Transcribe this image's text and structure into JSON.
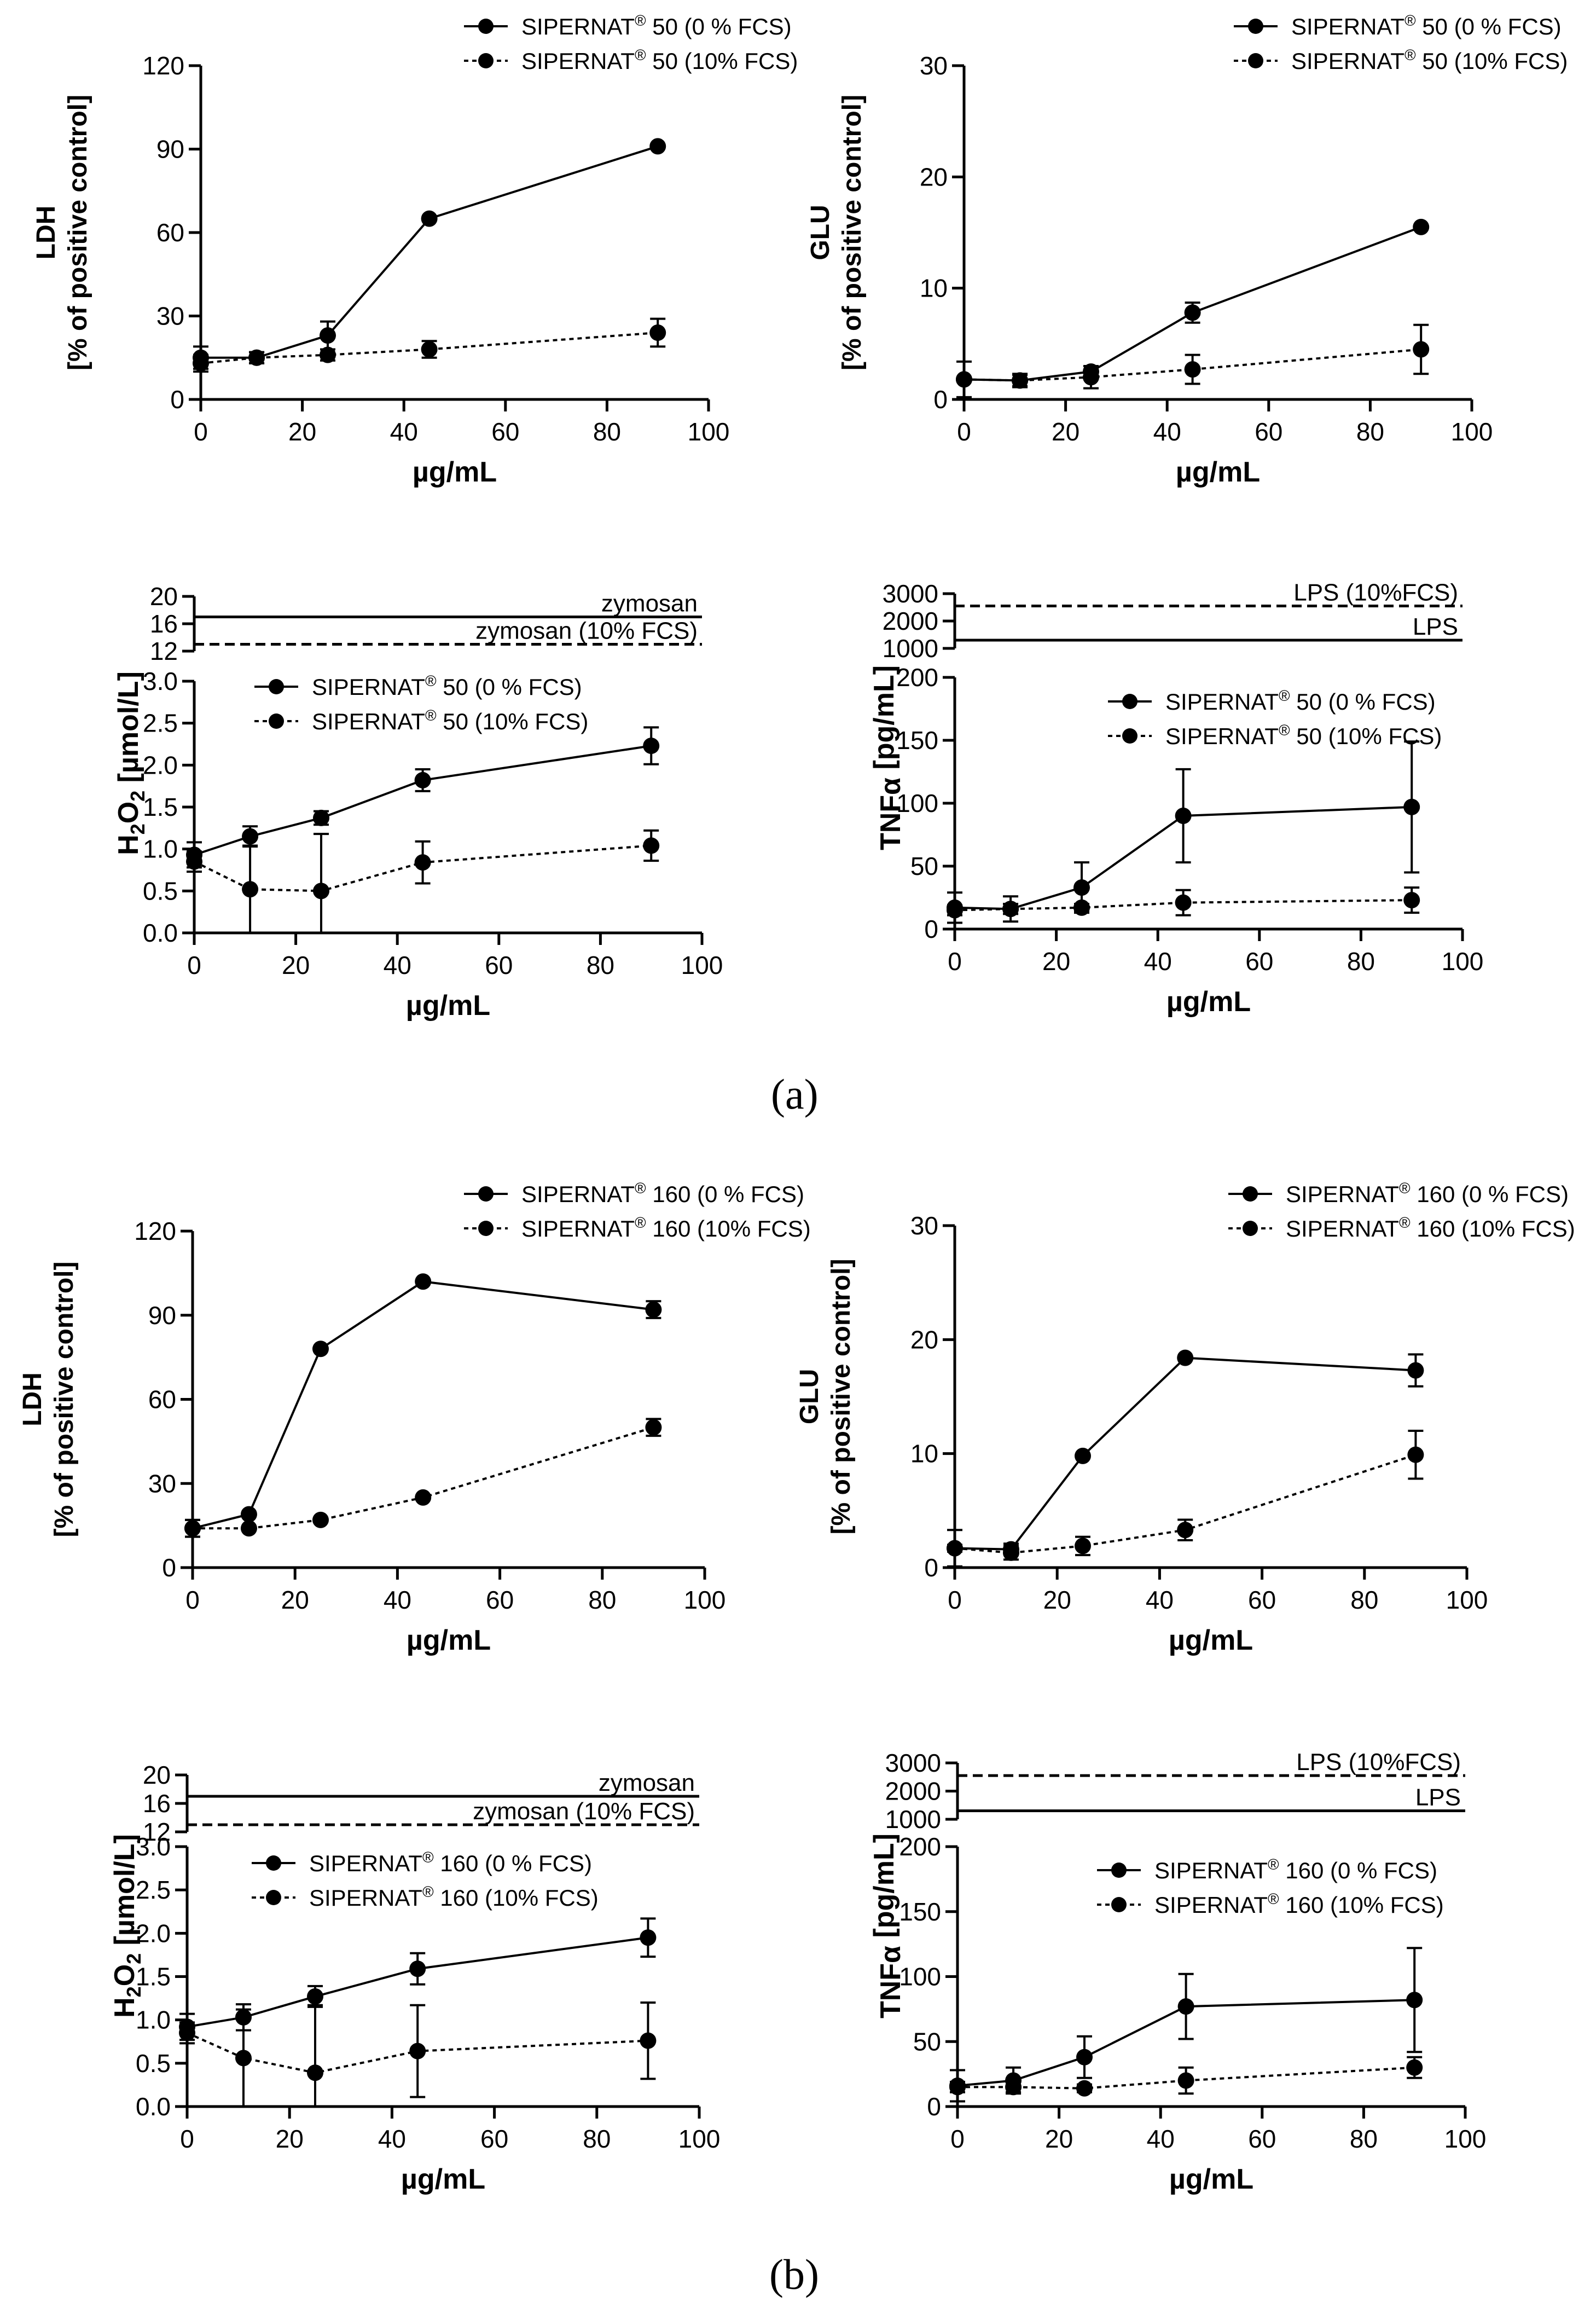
{
  "panel_labels": {
    "a": "(a)",
    "b": "(b)"
  },
  "chart_data": [
    {
      "id": "a-ldh",
      "type": "line",
      "ylabel_lines": [
        "LDH",
        "[% of positive control]"
      ],
      "xlabel": "µg/mL",
      "xlim": [
        0,
        100
      ],
      "xticks": [
        0,
        20,
        40,
        60,
        80,
        100
      ],
      "ylim": [
        0,
        120
      ],
      "yticks": [
        0,
        30,
        60,
        90,
        120
      ],
      "legend": "top-right",
      "series": [
        {
          "name": "SIPERNAT® 50 (0 % FCS)",
          "line": "solid",
          "x": [
            0,
            11,
            25,
            45,
            90
          ],
          "y": [
            15,
            15,
            23,
            65,
            91
          ],
          "err": [
            4,
            2,
            5,
            0,
            0
          ]
        },
        {
          "name": "SIPERNAT® 50 (10% FCS)",
          "line": "dotted",
          "x": [
            0,
            11,
            25,
            45,
            90
          ],
          "y": [
            13,
            15,
            16,
            18,
            24
          ],
          "err": [
            3,
            2,
            2,
            3,
            5
          ]
        }
      ]
    },
    {
      "id": "a-glu",
      "type": "line",
      "ylabel_lines": [
        "GLU",
        "[% of positive control]"
      ],
      "xlabel": "µg/mL",
      "xlim": [
        0,
        100
      ],
      "xticks": [
        0,
        20,
        40,
        60,
        80,
        100
      ],
      "ylim": [
        0,
        30
      ],
      "yticks": [
        0,
        10,
        20,
        30
      ],
      "legend": "top-right",
      "series": [
        {
          "name": "SIPERNAT® 50 (0 % FCS)",
          "line": "solid",
          "x": [
            0,
            11,
            25,
            45,
            90
          ],
          "y": [
            1.8,
            1.7,
            2.5,
            7.8,
            15.5
          ],
          "err": [
            1.6,
            0.6,
            0.5,
            0.9,
            0
          ]
        },
        {
          "name": "SIPERNAT® 50 (10% FCS)",
          "line": "dotted",
          "x": [
            0,
            11,
            25,
            45,
            90
          ],
          "y": [
            1.8,
            1.7,
            2.0,
            2.7,
            4.5
          ],
          "err": [
            0.2,
            0.5,
            1.0,
            1.3,
            2.2
          ]
        }
      ]
    },
    {
      "id": "a-h2o2",
      "type": "line",
      "ylabel_main": "H",
      "ylabel_sub1": "2",
      "ylabel_mid": "O",
      "ylabel_sub2": "2",
      "ylabel_tail": " [µmol/L]",
      "xlabel": "µg/mL",
      "xlim": [
        0,
        100
      ],
      "xticks": [
        0,
        20,
        40,
        60,
        80,
        100
      ],
      "ylim": [
        0,
        3.0
      ],
      "yticks": [
        0.0,
        0.5,
        1.0,
        1.5,
        2.0,
        2.5,
        3.0
      ],
      "ytick_labels": [
        "0.0",
        "0.5",
        "1.0",
        "1.5",
        "2.0",
        "2.5",
        "3.0"
      ],
      "legend": "top-left",
      "upper_ylim": [
        12,
        20
      ],
      "upper_yticks": [
        12,
        16,
        20
      ],
      "reference_lines": [
        {
          "label": "zymosan",
          "value": 17,
          "line": "solid"
        },
        {
          "label": "zymosan (10% FCS)",
          "value": 13,
          "line": "dashed"
        }
      ],
      "series": [
        {
          "name": "SIPERNAT® 50 (0 % FCS)",
          "line": "solid",
          "x": [
            0,
            11,
            25,
            45,
            90
          ],
          "y": [
            0.93,
            1.15,
            1.37,
            1.82,
            2.23
          ],
          "err": [
            0.15,
            0.12,
            0.08,
            0.13,
            0.22
          ]
        },
        {
          "name": "SIPERNAT® 50 (10% FCS)",
          "line": "dotted",
          "x": [
            0,
            11,
            25,
            45,
            90
          ],
          "y": [
            0.85,
            0.52,
            0.5,
            0.84,
            1.04
          ],
          "err": [
            0.12,
            0.52,
            0.68,
            0.25,
            0.18
          ]
        }
      ]
    },
    {
      "id": "a-tnf",
      "type": "line",
      "ylabel_main": "TNFα",
      "ylabel_tail": " [pg/mL]",
      "xlabel": "µg/mL",
      "xlim": [
        0,
        100
      ],
      "xticks": [
        0,
        20,
        40,
        60,
        80,
        100
      ],
      "ylim": [
        0,
        200
      ],
      "yticks": [
        0,
        50,
        100,
        150,
        200
      ],
      "legend": "top-right",
      "upper_ylim": [
        1000,
        3000
      ],
      "upper_yticks": [
        1000,
        2000,
        3000
      ],
      "reference_lines": [
        {
          "label": "LPS (10%FCS)",
          "value": 2550,
          "line": "dashed"
        },
        {
          "label": "LPS",
          "value": 1300,
          "line": "solid"
        }
      ],
      "series": [
        {
          "name": "SIPERNAT® 50 (0 % FCS)",
          "line": "solid",
          "x": [
            0,
            11,
            25,
            45,
            90
          ],
          "y": [
            17,
            16,
            33,
            90,
            97
          ],
          "err": [
            12,
            10,
            20,
            37,
            52
          ]
        },
        {
          "name": "SIPERNAT® 50 (10% FCS)",
          "line": "dotted",
          "x": [
            0,
            11,
            25,
            45,
            90
          ],
          "y": [
            15,
            16,
            17,
            21,
            23
          ],
          "err": [
            4,
            4,
            3,
            10,
            10
          ]
        }
      ]
    },
    {
      "id": "b-ldh",
      "type": "line",
      "ylabel_lines": [
        "LDH",
        "[% of positive control]"
      ],
      "xlabel": "µg/mL",
      "xlim": [
        0,
        100
      ],
      "xticks": [
        0,
        20,
        40,
        60,
        80,
        100
      ],
      "ylim": [
        0,
        120
      ],
      "yticks": [
        0,
        30,
        60,
        90,
        120
      ],
      "legend": "top-right",
      "series": [
        {
          "name": "SIPERNAT® 160 (0 % FCS)",
          "line": "solid",
          "x": [
            0,
            11,
            25,
            45,
            90
          ],
          "y": [
            14,
            19,
            78,
            102,
            92
          ],
          "err": [
            3,
            0,
            0,
            0,
            3
          ]
        },
        {
          "name": "SIPERNAT® 160 (10% FCS)",
          "line": "dotted",
          "x": [
            0,
            11,
            25,
            45,
            90
          ],
          "y": [
            14,
            14,
            17,
            25,
            50
          ],
          "err": [
            3,
            0,
            0,
            0,
            3
          ]
        }
      ]
    },
    {
      "id": "b-glu",
      "type": "line",
      "ylabel_lines": [
        "GLU",
        "[% of positive control]"
      ],
      "xlabel": "µg/mL",
      "xlim": [
        0,
        100
      ],
      "xticks": [
        0,
        20,
        40,
        60,
        80,
        100
      ],
      "ylim": [
        0,
        30
      ],
      "yticks": [
        0,
        10,
        20,
        30
      ],
      "legend": "top-right",
      "series": [
        {
          "name": "SIPERNAT® 160 (0 % FCS)",
          "line": "solid",
          "x": [
            0,
            11,
            25,
            45,
            90
          ],
          "y": [
            1.7,
            1.6,
            9.8,
            18.4,
            17.3
          ],
          "err": [
            1.6,
            0.5,
            0,
            0,
            1.4
          ]
        },
        {
          "name": "SIPERNAT® 160 (10% FCS)",
          "line": "dotted",
          "x": [
            0,
            11,
            25,
            45,
            90
          ],
          "y": [
            1.7,
            1.3,
            1.9,
            3.3,
            9.9
          ],
          "err": [
            0.3,
            0.6,
            0.8,
            0.9,
            2.1
          ]
        }
      ]
    },
    {
      "id": "b-h2o2",
      "type": "line",
      "ylabel_main": "H",
      "ylabel_sub1": "2",
      "ylabel_mid": "O",
      "ylabel_sub2": "2",
      "ylabel_tail": " [µmol/L]",
      "xlabel": "µg/mL",
      "xlim": [
        0,
        100
      ],
      "xticks": [
        0,
        20,
        40,
        60,
        80,
        100
      ],
      "ylim": [
        0,
        3.0
      ],
      "yticks": [
        0.0,
        0.5,
        1.0,
        1.5,
        2.0,
        2.5,
        3.0
      ],
      "ytick_labels": [
        "0.0",
        "0.5",
        "1.0",
        "1.5",
        "2.0",
        "2.5",
        "3.0"
      ],
      "legend": "top-left",
      "upper_ylim": [
        12,
        20
      ],
      "upper_yticks": [
        12,
        16,
        20
      ],
      "reference_lines": [
        {
          "label": "zymosan",
          "value": 17,
          "line": "solid"
        },
        {
          "label": "zymosan (10% FCS)",
          "value": 13,
          "line": "dashed"
        }
      ],
      "series": [
        {
          "name": "SIPERNAT® 160 (0 % FCS)",
          "line": "solid",
          "x": [
            0,
            11,
            25,
            45,
            90
          ],
          "y": [
            0.92,
            1.03,
            1.27,
            1.59,
            1.95
          ],
          "err": [
            0.15,
            0.15,
            0.12,
            0.18,
            0.22
          ]
        },
        {
          "name": "SIPERNAT® 160 (10% FCS)",
          "line": "dotted",
          "x": [
            0,
            11,
            25,
            45,
            90
          ],
          "y": [
            0.85,
            0.56,
            0.39,
            0.64,
            0.76
          ],
          "err": [
            0.12,
            0.56,
            0.78,
            0.53,
            0.44
          ]
        }
      ]
    },
    {
      "id": "b-tnf",
      "type": "line",
      "ylabel_main": "TNFα",
      "ylabel_tail": " [pg/mL]",
      "xlabel": "µg/mL",
      "xlim": [
        0,
        100
      ],
      "xticks": [
        0,
        20,
        40,
        60,
        80,
        100
      ],
      "ylim": [
        0,
        200
      ],
      "yticks": [
        0,
        50,
        100,
        150,
        200
      ],
      "legend": "top-right",
      "upper_ylim": [
        1000,
        3000
      ],
      "upper_yticks": [
        1000,
        2000,
        3000
      ],
      "reference_lines": [
        {
          "label": "LPS (10%FCS)",
          "value": 2550,
          "line": "dashed"
        },
        {
          "label": "LPS",
          "value": 1300,
          "line": "solid"
        }
      ],
      "series": [
        {
          "name": "SIPERNAT® 160 (0 % FCS)",
          "line": "solid",
          "x": [
            0,
            11,
            25,
            45,
            90
          ],
          "y": [
            16,
            20,
            38,
            77,
            82
          ],
          "err": [
            12,
            10,
            16,
            25,
            40
          ]
        },
        {
          "name": "SIPERNAT® 160 (10% FCS)",
          "line": "dotted",
          "x": [
            0,
            11,
            25,
            45,
            90
          ],
          "y": [
            15,
            15,
            14,
            20,
            30
          ],
          "err": [
            4,
            4,
            3,
            10,
            8
          ]
        }
      ]
    }
  ]
}
